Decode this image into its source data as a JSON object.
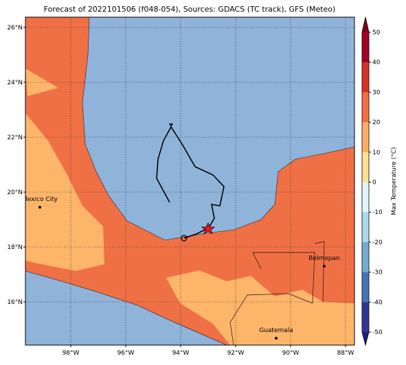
{
  "map": {
    "title": "Forecast of 2022101506 (f048-054), Sources: GDACS (TC track), GFS (Meteo)",
    "lat_ticks": [
      {
        "value": 26,
        "label": "26°N"
      },
      {
        "value": 24,
        "label": "24°N"
      },
      {
        "value": 22,
        "label": "22°N"
      },
      {
        "value": 20,
        "label": "20°N"
      },
      {
        "value": 18,
        "label": "18°N"
      },
      {
        "value": 16,
        "label": "16°N"
      }
    ],
    "lon_ticks": [
      {
        "value": -98,
        "label": "98°W"
      },
      {
        "value": -96,
        "label": "96°W"
      },
      {
        "value": -94,
        "label": "94°W"
      },
      {
        "value": -92,
        "label": "92°W"
      },
      {
        "value": -90,
        "label": "90°W"
      },
      {
        "value": -88,
        "label": "88°W"
      }
    ],
    "cities": [
      "Mexico City",
      "Belmopan",
      "Guatemala"
    ],
    "colorbar": {
      "label": "Max Temperature (°C)",
      "ticks": [
        50,
        40,
        30,
        20,
        10,
        0,
        -10,
        -20,
        -30,
        -40,
        -50
      ],
      "colors": [
        "#a50026",
        "#d73027",
        "#f46d43",
        "#fdae61",
        "#fee090",
        "#e0f3f8",
        "#abd9e9",
        "#74add1",
        "#4575b4",
        "#313695"
      ],
      "over_color": "#800020",
      "under_color": "#1f1f7a"
    }
  }
}
